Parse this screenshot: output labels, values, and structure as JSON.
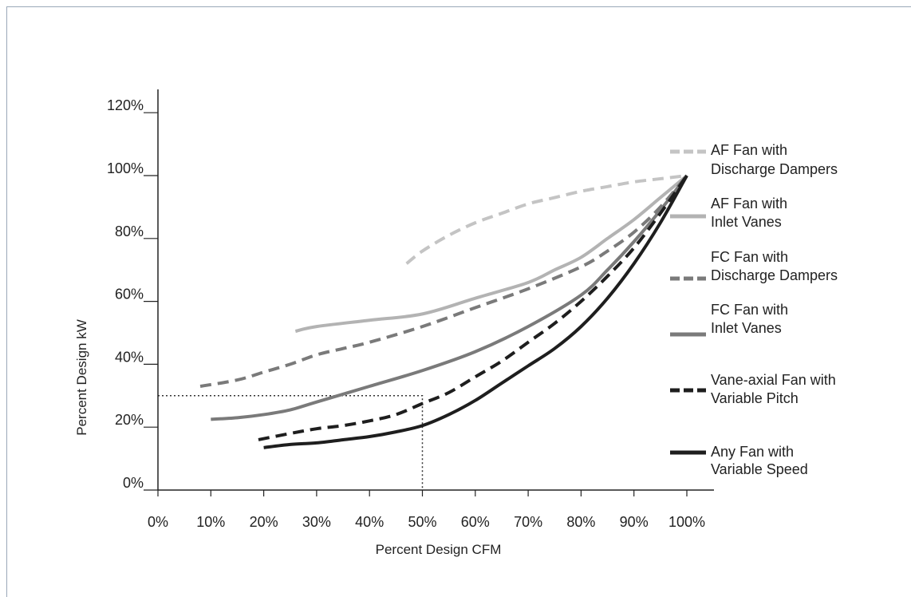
{
  "chart_data": {
    "type": "line",
    "xlabel": "Percent Design CFM",
    "ylabel": "Percent Design kW",
    "xlim": [
      0,
      100
    ],
    "ylim": [
      0,
      120
    ],
    "x_ticks": [
      0,
      10,
      20,
      30,
      40,
      50,
      60,
      70,
      80,
      90,
      100
    ],
    "x_tick_labels": [
      "0%",
      "10%",
      "20%",
      "30%",
      "40%",
      "50%",
      "60%",
      "70%",
      "80%",
      "90%",
      "100%"
    ],
    "y_ticks": [
      0,
      20,
      40,
      60,
      80,
      100,
      120
    ],
    "y_tick_labels": [
      "0%",
      "20%",
      "40%",
      "60%",
      "80%",
      "100%",
      "120%"
    ],
    "grid": false,
    "legend_placement": "right",
    "reference_lines": {
      "x": 50,
      "y": 30,
      "style": "dotted"
    },
    "series": [
      {
        "name": "AF Fan with Discharge Dampers",
        "color": "#c4c4c4",
        "dash": "dashed",
        "x": [
          47,
          50,
          55,
          60,
          65,
          70,
          75,
          80,
          85,
          90,
          95,
          100
        ],
        "y": [
          72,
          76,
          81,
          85,
          88,
          91,
          93,
          95,
          96.5,
          98,
          99,
          100
        ]
      },
      {
        "name": "AF Fan with Inlet Vanes",
        "color": "#b3b3b3",
        "dash": "solid",
        "x": [
          26,
          30,
          40,
          50,
          60,
          70,
          75,
          80,
          85,
          90,
          95,
          100
        ],
        "y": [
          50.5,
          52,
          54,
          56,
          61,
          66,
          70,
          74,
          80,
          86,
          93,
          100
        ]
      },
      {
        "name": "FC Fan with Discharge Dampers",
        "color": "#7a7a7a",
        "dash": "dashed",
        "x": [
          8,
          15,
          20,
          25,
          30,
          35,
          40,
          50,
          60,
          70,
          80,
          85,
          90,
          95,
          100
        ],
        "y": [
          33,
          35,
          37.5,
          40,
          43,
          45,
          47,
          52,
          58,
          64,
          71,
          76,
          82,
          90,
          100
        ]
      },
      {
        "name": "FC Fan with Inlet Vanes",
        "color": "#7a7a7a",
        "dash": "solid",
        "x": [
          10,
          15,
          20,
          25,
          30,
          40,
          50,
          60,
          70,
          80,
          85,
          90,
          95,
          100
        ],
        "y": [
          22.5,
          23,
          24,
          25.5,
          28,
          33,
          38,
          44,
          52,
          62,
          70,
          79,
          89,
          100
        ]
      },
      {
        "name": "Vane-axial Fan with Variable Pitch",
        "color": "#1e1e1e",
        "dash": "dashed",
        "x": [
          19,
          25,
          30,
          35,
          40,
          45,
          50,
          55,
          60,
          65,
          70,
          75,
          80,
          85,
          90,
          95,
          100
        ],
        "y": [
          16,
          18,
          19.5,
          20.5,
          22,
          24,
          27.5,
          31,
          36,
          41,
          47,
          53,
          60,
          68,
          77,
          88,
          100
        ]
      },
      {
        "name": "Any Fan with Variable Speed",
        "color": "#1e1e1e",
        "dash": "solid",
        "x": [
          20,
          25,
          30,
          35,
          40,
          45,
          50,
          55,
          60,
          65,
          70,
          75,
          80,
          85,
          90,
          95,
          100
        ],
        "y": [
          13.5,
          14.5,
          15,
          16,
          17,
          18.5,
          20.5,
          24,
          28.5,
          34,
          39.5,
          45,
          52,
          61,
          72,
          85,
          100
        ]
      }
    ]
  }
}
